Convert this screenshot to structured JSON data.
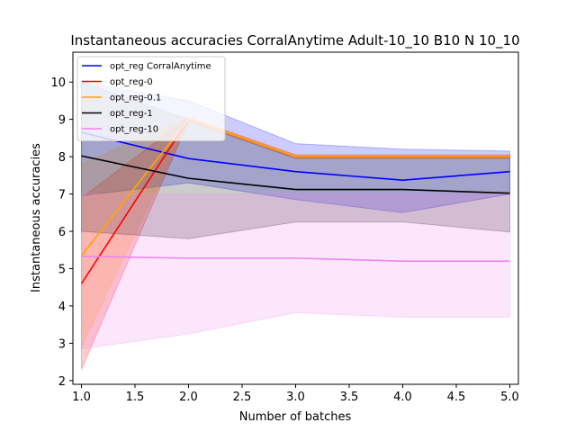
{
  "chart_data": {
    "type": "line",
    "title": "Instantaneous accuracies CorralAnytime Adult-10_10 B10 N 10_10",
    "xlabel": "Number of batches",
    "ylabel": "Instantaneous accuracies",
    "xlim": [
      0.92,
      5.08
    ],
    "ylim": [
      1.9,
      10.8
    ],
    "xticks": [
      "1.0",
      "1.5",
      "2.0",
      "2.5",
      "3.0",
      "3.5",
      "4.0",
      "4.5",
      "5.0"
    ],
    "yticks": [
      "2",
      "3",
      "4",
      "5",
      "6",
      "7",
      "8",
      "9",
      "10"
    ],
    "grid": false,
    "legend_position": "upper-left",
    "x": [
      1,
      2,
      3,
      4,
      5
    ],
    "series": [
      {
        "name": "opt_reg CorralAnytime",
        "color": "#0000ff",
        "values": [
          8.65,
          7.95,
          7.6,
          7.37,
          7.6
        ],
        "lower": [
          6.95,
          7.3,
          6.85,
          6.5,
          7.0
        ],
        "upper": [
          10.0,
          9.5,
          8.35,
          8.2,
          8.15
        ]
      },
      {
        "name": "opt_reg-0",
        "color": "#ff0000",
        "values": [
          4.6,
          9.0,
          8.0,
          8.0,
          8.0
        ],
        "lower": [
          2.3,
          8.95,
          7.95,
          7.95,
          7.95
        ],
        "upper": [
          6.9,
          9.05,
          8.05,
          8.05,
          8.05
        ]
      },
      {
        "name": "opt_reg-0.1",
        "color": "#ffa500",
        "values": [
          5.35,
          9.0,
          8.0,
          8.0,
          8.0
        ],
        "lower": [
          2.9,
          8.95,
          7.95,
          7.95,
          7.95
        ],
        "upper": [
          7.8,
          9.05,
          8.05,
          8.05,
          8.05
        ]
      },
      {
        "name": "opt_reg-1",
        "color": "#000000",
        "values": [
          8.02,
          7.42,
          7.12,
          7.12,
          7.02
        ],
        "lower": [
          6.0,
          5.8,
          6.25,
          6.25,
          5.98
        ],
        "upper": [
          10.0,
          9.0,
          8.0,
          8.0,
          8.0
        ]
      },
      {
        "name": "opt_reg-10",
        "color": "#ee82ee",
        "values": [
          5.33,
          5.28,
          5.28,
          5.2,
          5.2
        ],
        "lower": [
          2.85,
          3.25,
          3.82,
          3.7,
          3.7
        ],
        "upper": [
          7.0,
          7.0,
          7.0,
          7.0,
          7.0
        ]
      }
    ]
  }
}
